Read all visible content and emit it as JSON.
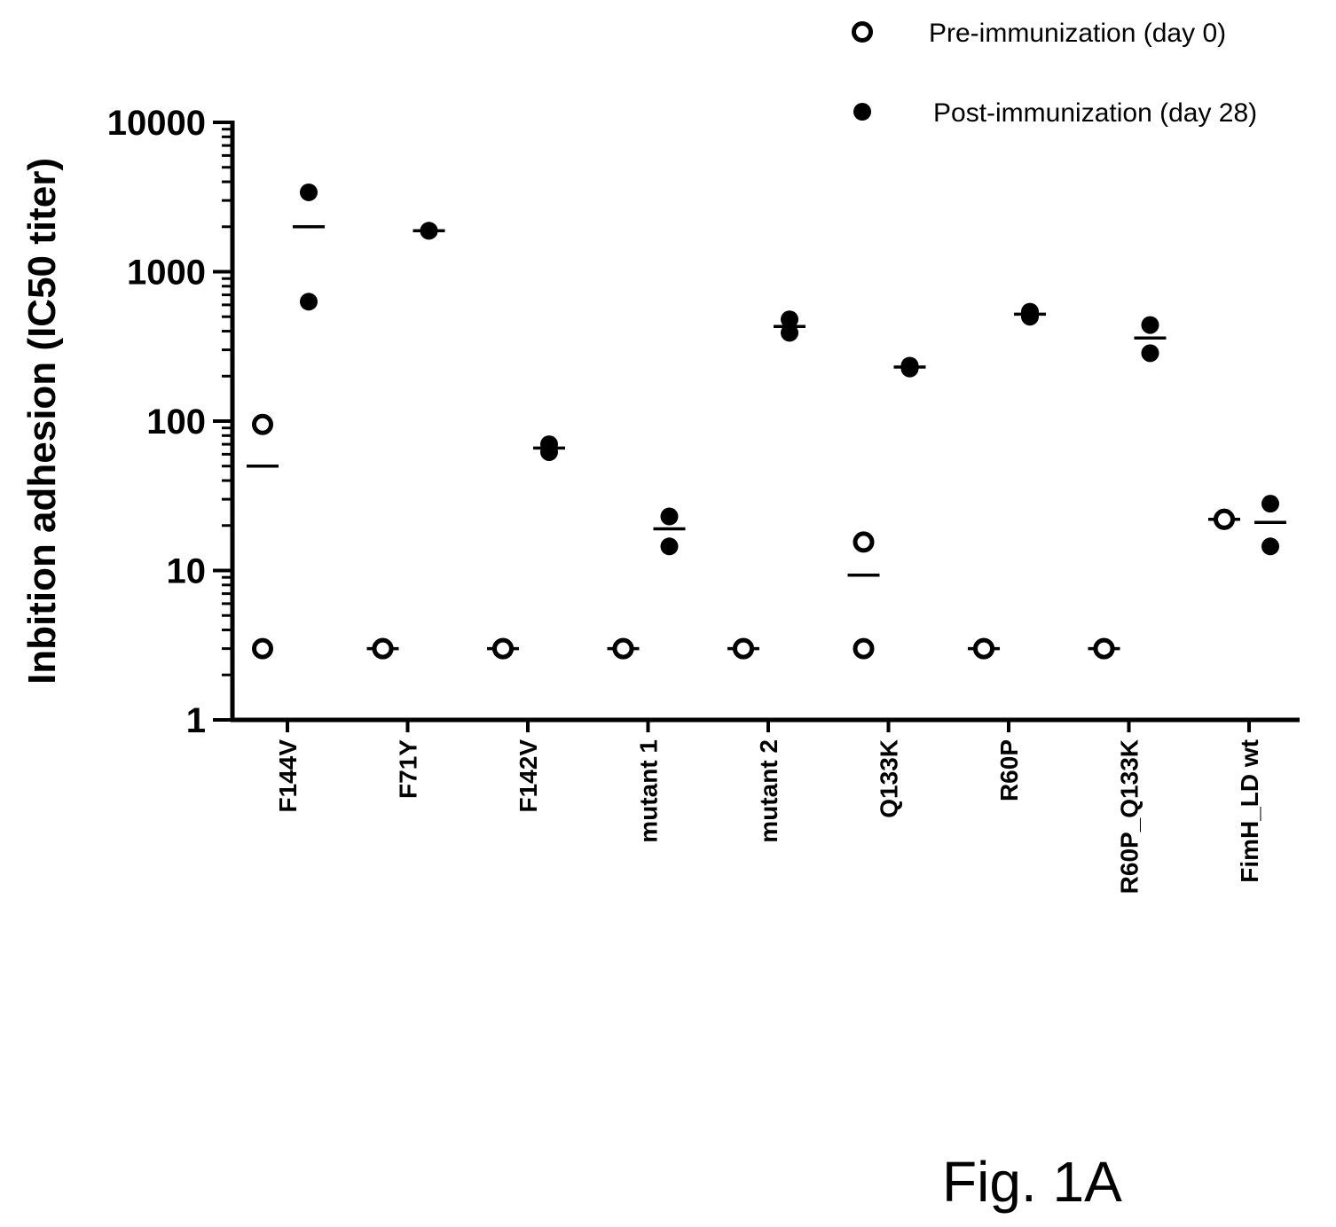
{
  "chart_data": {
    "type": "scatter",
    "title": "",
    "xlabel": "",
    "ylabel": "Inbition adhesion (IC50 titer)",
    "yscale": "log",
    "ylim": [
      1,
      10000
    ],
    "yticks": [
      "1",
      "10",
      "100",
      "1000",
      "10000"
    ],
    "grid": false,
    "legend_placement": "top-right",
    "categories": [
      "F144V",
      "F71Y",
      "F142V",
      "mutant 1",
      "mutant 2",
      "Q133K",
      "R60P",
      "R60P_Q133K",
      "FimH_LD wt"
    ],
    "series": [
      {
        "name": "Pre-immunization (day 0)",
        "marker": "open-circle",
        "points": [
          [
            3,
            95
          ],
          [
            3,
            3
          ],
          [
            3,
            3
          ],
          [
            3,
            3
          ],
          [
            3,
            3
          ],
          [
            3,
            15.5
          ],
          [
            3,
            3
          ],
          [
            3,
            3
          ],
          [
            22,
            22
          ]
        ],
        "means": [
          50,
          3,
          3,
          3,
          3,
          9.3,
          3,
          3,
          22
        ]
      },
      {
        "name": "Post-immunization (day 28)",
        "marker": "filled-circle",
        "points": [
          [
            630,
            3400
          ],
          [
            1880,
            1880
          ],
          [
            62,
            70
          ],
          [
            14.5,
            23
          ],
          [
            390,
            480
          ],
          [
            225,
            235
          ],
          [
            500,
            540
          ],
          [
            285,
            440
          ],
          [
            14.5,
            28
          ]
        ],
        "means": [
          2000,
          1880,
          66,
          19,
          430,
          230,
          520,
          360,
          21
        ]
      }
    ]
  },
  "figure_label": "Fig. 1A"
}
